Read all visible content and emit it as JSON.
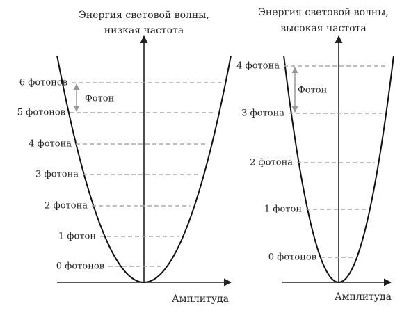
{
  "panels": [
    {
      "title": [
        "Энергия световой волны,",
        "низкая частота"
      ],
      "levels": [
        "0 фотонов",
        "1 фотон",
        "2 фотона",
        "3 фотона",
        "4 фотона",
        "5 фотонов",
        "6 фотонов"
      ],
      "photon_label": "Фотон",
      "x_axis_label": "Амплитуда"
    },
    {
      "title": [
        "Энергия световой волны,",
        "высокая частота"
      ],
      "levels": [
        "0 фотонов",
        "1 фотон",
        "2 фотона",
        "3 фотона",
        "4 фотона"
      ],
      "photon_label": "Фотон",
      "x_axis_label": "Амплитуда"
    }
  ]
}
